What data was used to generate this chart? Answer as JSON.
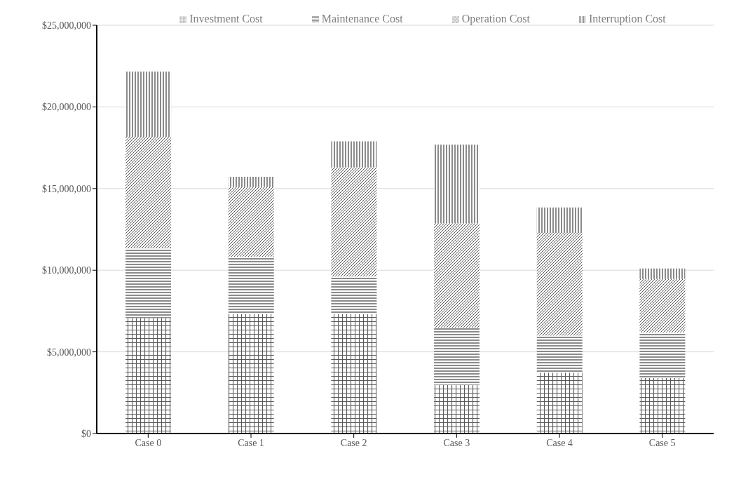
{
  "chart_data": {
    "type": "bar",
    "stacked": true,
    "categories": [
      "Case 0",
      "Case 1",
      "Case 2",
      "Case 3",
      "Case 4",
      "Case 5"
    ],
    "series": [
      {
        "name": "Investment Cost",
        "color": "#595959",
        "values": [
          7070000,
          7300000,
          7300000,
          2980000,
          3730000,
          3390000
        ]
      },
      {
        "name": "Maintenance Cost",
        "color": "#595959",
        "values": [
          4300000,
          3530000,
          2310000,
          3510000,
          2260000,
          2800000
        ]
      },
      {
        "name": "Operation Cost",
        "color": "#595959",
        "values": [
          6800000,
          4260000,
          6700000,
          6390000,
          6300000,
          3270000
        ]
      },
      {
        "name": "Interruption Cost",
        "color": "#595959",
        "values": [
          4000000,
          630000,
          1580000,
          4810000,
          1550000,
          640000
        ]
      }
    ],
    "ylim": [
      0,
      25000000
    ],
    "yticks": [
      {
        "value": 0,
        "label": "$0"
      },
      {
        "value": 5000000,
        "label": "$5,000,000"
      },
      {
        "value": 10000000,
        "label": "$10,000,000"
      },
      {
        "value": 15000000,
        "label": "$15,000,000"
      },
      {
        "value": 20000000,
        "label": "$20,000,000"
      },
      {
        "value": 25000000,
        "label": "$25,000,000"
      }
    ],
    "grid": "y",
    "legend": "top"
  }
}
